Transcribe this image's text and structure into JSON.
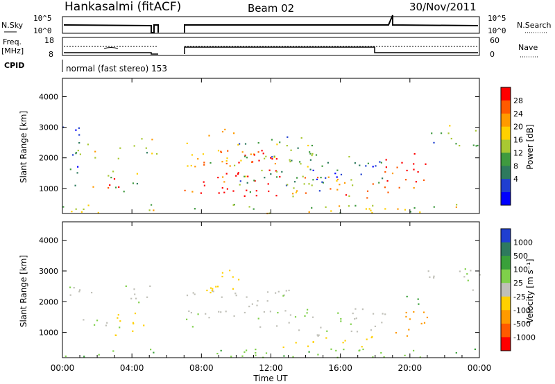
{
  "header": {
    "station": "Hankasalmi (fitACF)",
    "beam": "Beam 02",
    "date": "30/Nov/2011"
  },
  "top_panels": {
    "nsky_label": "N.Sky",
    "nsky_ticks": [
      "10^5",
      "10^0"
    ],
    "nsearch_label": "N.Search",
    "nsearch_ticks": [
      "10^5",
      "10^0"
    ],
    "freq_label": "Freq.",
    "freq_unit": "[MHz]",
    "freq_ticks": [
      "18",
      "8"
    ],
    "nave_label": "Nave",
    "nave_ticks": [
      "60",
      "0"
    ],
    "cpid_label": "CPID",
    "cpid_text": "normal (fast stereo) 153"
  },
  "chart_data": [
    {
      "type": "heatmap",
      "name": "power",
      "ylabel": "Slant Range [km]",
      "ylim": [
        180,
        4600
      ],
      "yticks": [
        "4000",
        "3000",
        "2000",
        "1000"
      ],
      "ytick_values": [
        4000,
        3000,
        2000,
        1000
      ],
      "colorbar_label": "Power [dB]",
      "colorbar_ticks": [
        "28",
        "24",
        "20",
        "16",
        "12",
        "8",
        "4"
      ],
      "colorbar_colors": [
        "#0000ff",
        "#1f3fd0",
        "#2e7a5e",
        "#3f9a3f",
        "#a8c832",
        "#ffd000",
        "#ff9a00",
        "#ff5a00",
        "#ff0000"
      ],
      "bands": [
        {
          "t0": 0.0,
          "t1": 1.0,
          "r0": 1000,
          "r1": 3200,
          "v": 8
        },
        {
          "t0": 0.3,
          "t1": 2.0,
          "r0": 2000,
          "r1": 2500,
          "v": 16
        },
        {
          "t0": 1.6,
          "t1": 3.3,
          "r0": 850,
          "r1": 1400,
          "v": 28
        },
        {
          "t0": 3.0,
          "t1": 5.4,
          "r0": 2000,
          "r1": 2700,
          "v": 16
        },
        {
          "t0": 2.5,
          "t1": 4.5,
          "r0": 900,
          "r1": 1600,
          "v": 12
        },
        {
          "t0": 7.0,
          "t1": 12.5,
          "r0": 750,
          "r1": 2300,
          "v": 28
        },
        {
          "t0": 7.0,
          "t1": 10.0,
          "r0": 1700,
          "r1": 3000,
          "v": 20
        },
        {
          "t0": 10.0,
          "t1": 15.0,
          "r0": 800,
          "r1": 2800,
          "v": 12
        },
        {
          "t0": 12.5,
          "t1": 18.5,
          "r0": 700,
          "r1": 1400,
          "v": 20
        },
        {
          "t0": 14.0,
          "t1": 18.5,
          "r0": 1200,
          "r1": 2200,
          "v": 8
        },
        {
          "t0": 18.5,
          "t1": 21.0,
          "r0": 750,
          "r1": 2200,
          "v": 28
        },
        {
          "t0": 21.0,
          "t1": 24.0,
          "r0": 2400,
          "r1": 3100,
          "v": 12
        },
        {
          "t0": 0.0,
          "t1": 24.0,
          "r0": 200,
          "r1": 500,
          "v": 16
        }
      ]
    },
    {
      "type": "heatmap",
      "name": "velocity",
      "xlabel": "Time UT",
      "ylabel": "Slant Range [km]",
      "ylim": [
        180,
        4600
      ],
      "yticks": [
        "4000",
        "3000",
        "2000",
        "1000"
      ],
      "ytick_values": [
        4000,
        3000,
        2000,
        1000
      ],
      "xticks": [
        "00:00",
        "04:00",
        "08:00",
        "12:00",
        "16:00",
        "20:00",
        "00:00"
      ],
      "xtick_values": [
        0,
        4,
        8,
        12,
        16,
        20,
        24
      ],
      "xlim": [
        0,
        24
      ],
      "colorbar_label": "Velocity [m s⁻¹]",
      "colorbar_ticks": [
        "1000",
        "500",
        "100",
        "25",
        "-25",
        "-100",
        "-500",
        "-1000"
      ],
      "colorbar_colors": [
        "#1f3fd0",
        "#2e7a5e",
        "#3aa03a",
        "#7fd04a",
        "#c0c0b8",
        "#ffd000",
        "#ff9a00",
        "#ff5a00",
        "#ff0000"
      ],
      "bands": [
        {
          "t0": 0.2,
          "t1": 2.0,
          "r0": 2000,
          "r1": 2600,
          "v": 0
        },
        {
          "t0": 3.0,
          "t1": 5.4,
          "r0": 2000,
          "r1": 2600,
          "v": 0
        },
        {
          "t0": 1.0,
          "t1": 3.5,
          "r0": 1100,
          "r1": 1500,
          "v": 0
        },
        {
          "t0": 3.0,
          "t1": 4.8,
          "r0": 800,
          "r1": 1800,
          "v": -100
        },
        {
          "t0": 7.0,
          "t1": 13.0,
          "r0": 1200,
          "r1": 2400,
          "v": 0
        },
        {
          "t0": 8.0,
          "t1": 11.0,
          "r0": 2300,
          "r1": 3100,
          "v": -100
        },
        {
          "t0": 12.5,
          "t1": 18.0,
          "r0": 500,
          "r1": 900,
          "v": -100
        },
        {
          "t0": 13.0,
          "t1": 19.0,
          "r0": 900,
          "r1": 1800,
          "v": 0
        },
        {
          "t0": 19.0,
          "t1": 21.0,
          "r0": 800,
          "r1": 1800,
          "v": -200
        },
        {
          "t0": 19.5,
          "t1": 20.5,
          "r0": 1800,
          "r1": 2400,
          "v": 100
        },
        {
          "t0": 21.0,
          "t1": 24.0,
          "r0": 2400,
          "r1": 3100,
          "v": 0
        },
        {
          "t0": 0.0,
          "t1": 24.0,
          "r0": 200,
          "r1": 500,
          "v": 50
        }
      ]
    }
  ],
  "data_gaps": [
    [
      5.4,
      7.0
    ]
  ]
}
